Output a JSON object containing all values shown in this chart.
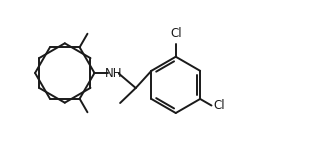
{
  "bg_color": "#ffffff",
  "line_color": "#1a1a1a",
  "line_width": 1.4,
  "font_size": 8.5,
  "nh_label": "NH",
  "cl1_label": "Cl",
  "cl2_label": "Cl",
  "figsize": [
    3.14,
    1.46
  ],
  "dpi": 100
}
